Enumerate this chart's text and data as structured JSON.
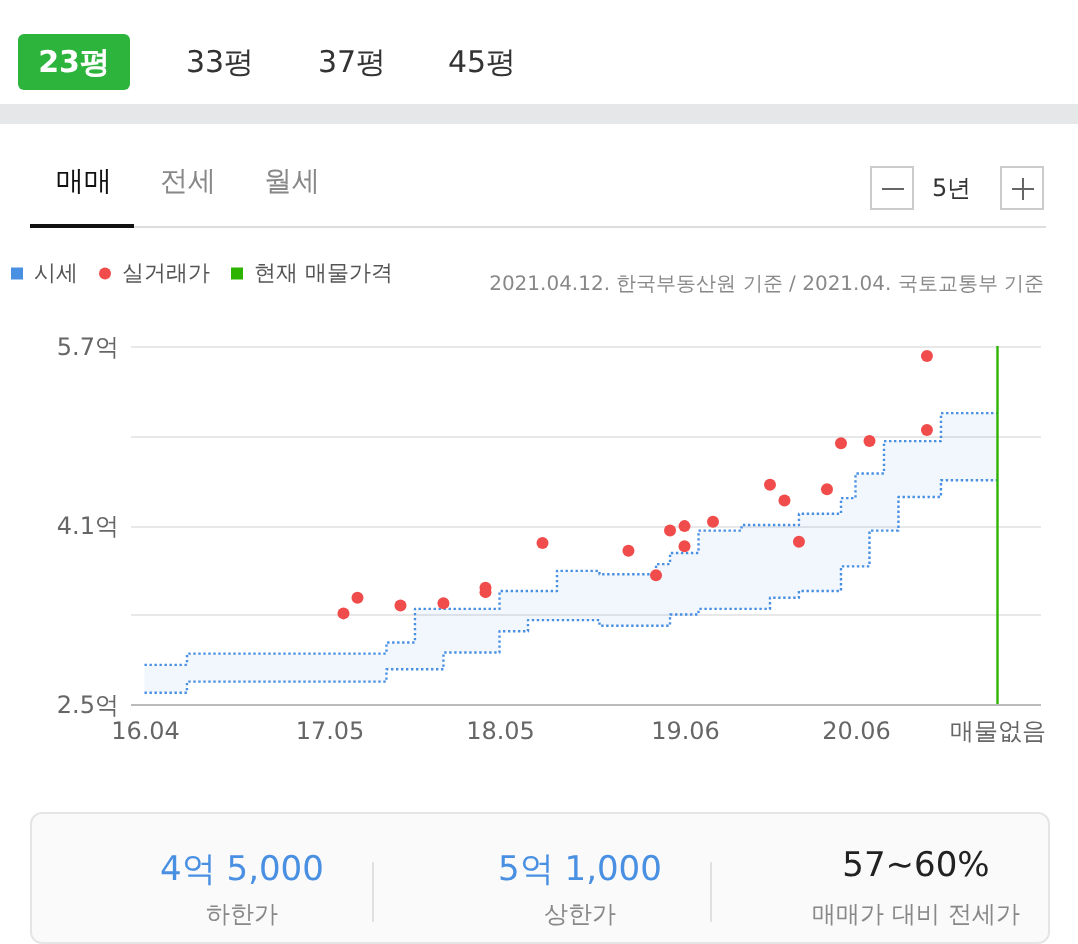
{
  "chart_data": {
    "type": "scatter",
    "annotations": [
      "23평",
      "33평",
      "37평",
      "45평",
      "매매",
      "전세",
      "월세",
      "5년",
      "2021.04.12. 한국부동산원 기준 / 2021.04. 국토교통부 기준",
      "4억 5,000",
      "하한가",
      "5억 1,000",
      "상한가",
      "57~60%",
      "매매가 대비 전세가"
    ],
    "series": [
      {
        "name": "시세",
        "type": "step",
        "color": "#4a90e2",
        "line_style": "dotted",
        "x": [
          "2016-04",
          "2016-07",
          "2017-09",
          "2017-11",
          "2018-01",
          "2018-05",
          "2018-07",
          "2018-09",
          "2018-12",
          "2019-04",
          "2019-05",
          "2019-07",
          "2019-10",
          "2019-12",
          "2020-02",
          "2020-05",
          "2020-06",
          "2020-07",
          "2020-08",
          "2020-09",
          "2020-12",
          "2021-04"
        ],
        "values": [
          2.85,
          2.95,
          3.05,
          3.35,
          3.35,
          3.51,
          3.51,
          3.69,
          3.66,
          3.75,
          3.85,
          4.05,
          4.1,
          4.1,
          4.2,
          4.34,
          4.56,
          4.56,
          4.85,
          4.85,
          5.1,
          5.1
        ],
        "upper": [
          2.85,
          2.95,
          3.05,
          3.35,
          3.35,
          3.51,
          3.51,
          3.69,
          3.66,
          3.75,
          3.85,
          4.05,
          4.1,
          4.1,
          4.2,
          4.34,
          4.56,
          4.56,
          4.85,
          4.85,
          5.1,
          5.1
        ],
        "lower": [
          2.6,
          2.7,
          2.81,
          2.81,
          2.96,
          3.15,
          3.25,
          3.25,
          3.2,
          3.2,
          3.3,
          3.35,
          3.35,
          3.45,
          3.51,
          3.73,
          3.73,
          4.05,
          4.05,
          4.35,
          4.5,
          4.5
        ]
      },
      {
        "type": "step",
        "color": "#4a90e2",
        "line_style": "dotted",
        "x": [
          "2016-04",
          "2016-07",
          "2017-09",
          "2017-11",
          "2018-01",
          "2018-05",
          "2018-07",
          "2018-09",
          "2018-12",
          "2019-04",
          "2019-05",
          "2019-07",
          "2019-10",
          "2019-12",
          "2020-02",
          "2020-05",
          "2020-06",
          "2020-07",
          "2020-08",
          "2020-09",
          "2020-12",
          "2021-04"
        ],
        "values": [
          2.6,
          2.7,
          2.81,
          2.81,
          2.96,
          3.15,
          3.25,
          3.25,
          3.2,
          3.2,
          3.3,
          3.35,
          3.35,
          3.45,
          3.51,
          3.73,
          3.73,
          4.05,
          4.05,
          4.35,
          4.5,
          4.5
        ]
      },
      {
        "name": "실거래가",
        "type": "scatter",
        "color": "#f04c4c",
        "marker": "circle",
        "x": [
          "2017-06",
          "2017-07",
          "2017-10",
          "2018-01",
          "2018-04",
          "2018-04",
          "2018-08",
          "2019-02",
          "2019-04",
          "2019-05",
          "2019-06",
          "2019-06",
          "2019-08",
          "2019-12",
          "2020-01",
          "2020-02",
          "2020-04",
          "2020-05",
          "2020-07",
          "2020-11",
          "2020-11"
        ],
        "values": [
          3.31,
          3.45,
          3.38,
          3.4,
          3.54,
          3.5,
          3.94,
          3.87,
          3.65,
          4.05,
          4.09,
          3.91,
          4.13,
          4.46,
          4.32,
          3.95,
          4.42,
          4.83,
          4.85,
          5.61,
          4.95
        ]
      },
      {
        "name": "현재 매물가격",
        "type": "line",
        "color": "#2db400",
        "line_style": "solid",
        "x": [
          "2021-04",
          "2021-04"
        ],
        "values": [
          2.5,
          5.7
        ]
      }
    ],
    "xlim": [
      "2016-03",
      "2021-07"
    ],
    "xticks": [
      {
        "value": "2016-04",
        "label": "16.04"
      },
      {
        "value": "2017-05",
        "label": "17.05"
      },
      {
        "value": "2018-05",
        "label": "18.05"
      },
      {
        "value": "2019-06",
        "label": "19.06"
      },
      {
        "value": "2020-06",
        "label": "20.06"
      },
      {
        "value": "2021-04",
        "label": "매물없음"
      }
    ],
    "ylim": [
      2.5,
      5.7
    ],
    "yticks": [
      {
        "value": 2.5,
        "label": "2.5억"
      },
      {
        "value": 3.3,
        "label": null
      },
      {
        "value": 4.1,
        "label": "4.1억"
      },
      {
        "value": 4.9,
        "label": null
      },
      {
        "value": 5.7,
        "label": "5.7억"
      }
    ],
    "grid": "y",
    "legend": "top left"
  }
}
